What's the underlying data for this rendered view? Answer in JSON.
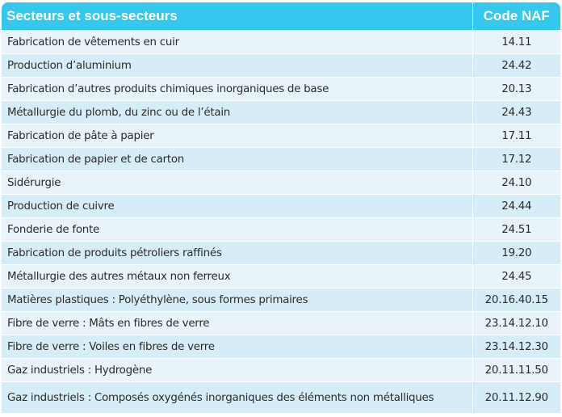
{
  "table": {
    "headers": {
      "sector": "Secteurs et sous-secteurs",
      "code": "Code NAF"
    },
    "rows": [
      {
        "sector": "Fabrication de vêtements en cuir",
        "code": "14.11"
      },
      {
        "sector": "Production d’aluminium",
        "code": "24.42"
      },
      {
        "sector": "Fabrication d’autres produits chimiques inorganiques de base",
        "code": "20.13"
      },
      {
        "sector": "Métallurgie du plomb, du zinc ou de l’étain",
        "code": "24.43"
      },
      {
        "sector": "Fabrication de pâte à papier",
        "code": "17.11"
      },
      {
        "sector": "Fabrication de papier et de carton",
        "code": "17.12"
      },
      {
        "sector": "Sidérurgie",
        "code": "24.10"
      },
      {
        "sector": "Production de cuivre",
        "code": "24.44"
      },
      {
        "sector": "Fonderie de fonte",
        "code": "24.51"
      },
      {
        "sector": "Fabrication de produits pétroliers raffinés",
        "code": "19.20"
      },
      {
        "sector": "Métallurgie des autres métaux non ferreux",
        "code": "24.45"
      },
      {
        "sector": "Matières plastiques : Polyéthylène, sous formes primaires",
        "code": "20.16.40.15"
      },
      {
        "sector": "Fibre de verre : Mâts en fibres de verre",
        "code": "23.14.12.10"
      },
      {
        "sector": "Fibre de verre : Voiles en fibres de verre",
        "code": "23.14.12.30"
      },
      {
        "sector": "Gaz industriels : Hydrogène",
        "code": "20.11.11.50"
      },
      {
        "sector": "Gaz industriels : Composés oxygénés inorganiques des éléments non métalliques",
        "code": "20.11.12.90"
      }
    ]
  }
}
